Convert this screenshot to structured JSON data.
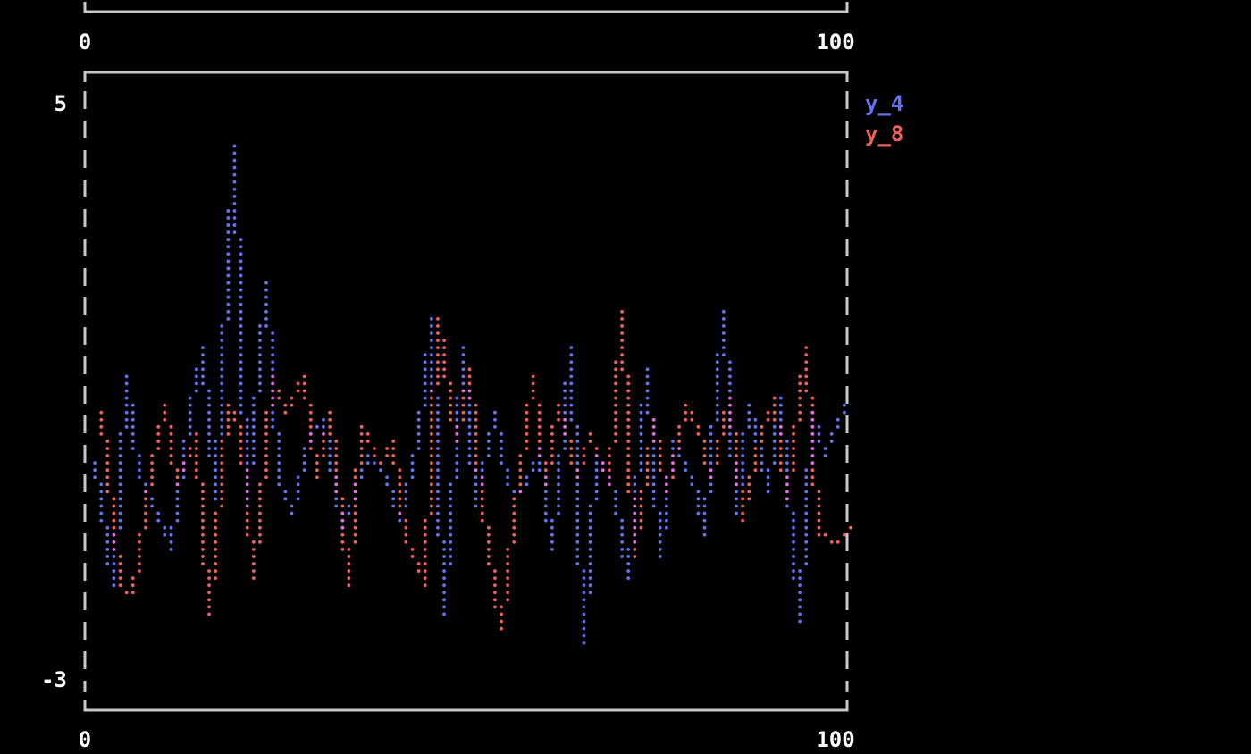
{
  "colors": {
    "y_4": "#6272f0",
    "y_8": "#f0605a",
    "overlap": "#e46ee6",
    "axis": "#c8c8c8",
    "text": "#ffffff"
  },
  "top_chart": {
    "xticks": [
      "0",
      "100"
    ]
  },
  "chart_data": {
    "type": "line",
    "title": "",
    "xlabel": "",
    "ylabel": "",
    "xlim": [
      0,
      100
    ],
    "ylim": [
      -3,
      5
    ],
    "xticks": [
      "0",
      "100"
    ],
    "yticks": [
      "5",
      "-3"
    ],
    "legend": "top-right",
    "grid": false,
    "series": [
      {
        "name": "y_4",
        "x": [
          1,
          3,
          5,
          7,
          9,
          11,
          13,
          15,
          17,
          19,
          21,
          23,
          25,
          27,
          29,
          31,
          33,
          35,
          37,
          39,
          41,
          43,
          45,
          47,
          49,
          51,
          53,
          55,
          57,
          59,
          61,
          63,
          65,
          67,
          69,
          71,
          73,
          75,
          77,
          79,
          81,
          83,
          85,
          87,
          89,
          91,
          93,
          95,
          97,
          99
        ],
        "y": [
          0.0,
          -1.7,
          1.2,
          -0.2,
          -0.8,
          -1.2,
          0.7,
          1.6,
          -0.5,
          4.4,
          -0.6,
          2.5,
          -0.3,
          -0.7,
          0.4,
          0.6,
          -0.9,
          -0.4,
          0.1,
          -0.2,
          -0.8,
          0.3,
          2.0,
          -2.1,
          1.6,
          -0.6,
          0.7,
          -0.3,
          -0.4,
          0.2,
          -1.2,
          1.6,
          -2.5,
          0.1,
          -0.5,
          -1.6,
          1.3,
          -1.3,
          0.3,
          -0.2,
          -1.0,
          2.1,
          -0.7,
          0.8,
          -0.4,
          0.9,
          -2.2,
          0.7,
          0.1,
          0.8
        ]
      },
      {
        "name": "y_8",
        "x": [
          2,
          4,
          6,
          8,
          10,
          12,
          14,
          16,
          18,
          20,
          22,
          24,
          26,
          28,
          30,
          32,
          34,
          36,
          38,
          40,
          42,
          44,
          46,
          48,
          50,
          52,
          54,
          56,
          58,
          60,
          62,
          64,
          66,
          68,
          70,
          72,
          74,
          76,
          78,
          80,
          82,
          84,
          86,
          88,
          90,
          92,
          94,
          96,
          98,
          100
        ],
        "y": [
          0.7,
          -1.7,
          -1.8,
          0.0,
          0.8,
          -0.3,
          0.4,
          -2.1,
          0.8,
          0.5,
          -1.6,
          1.2,
          0.7,
          1.2,
          -0.2,
          0.7,
          -1.7,
          0.5,
          0.0,
          0.3,
          -1.1,
          -1.7,
          2.0,
          0.3,
          1.3,
          -0.6,
          -2.3,
          -0.8,
          1.2,
          -0.3,
          0.8,
          -0.2,
          0.4,
          -0.3,
          2.1,
          -1.3,
          0.6,
          -0.4,
          0.8,
          0.5,
          -0.2,
          0.9,
          -0.8,
          0.5,
          0.9,
          -0.5,
          1.6,
          -1.0,
          -1.1,
          -0.9
        ]
      }
    ]
  }
}
